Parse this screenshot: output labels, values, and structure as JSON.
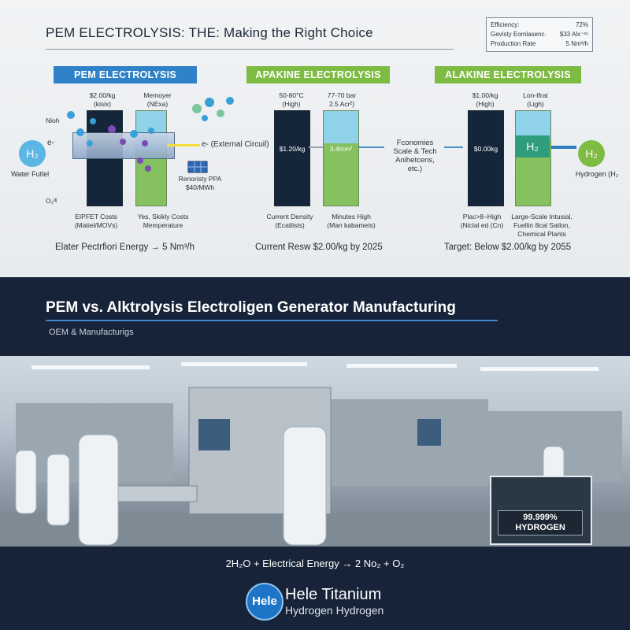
{
  "header": {
    "title": "PEM ELECTROLYSIS: THE: Making the Right Choice"
  },
  "stats_box": {
    "rows": [
      {
        "label": "Efficiency:",
        "value": "72%"
      },
      {
        "label": "Gevisty Eomlasenc.",
        "value": "$33 Alx⁻ᵉ¹"
      },
      {
        "label": "Production Rate",
        "value": "5 Nm³/h"
      }
    ]
  },
  "sections": [
    {
      "label": "PEM ELECTROLYSIS",
      "color": "#2f82c8"
    },
    {
      "label": "APAKINE ELECTROLYSIS",
      "color": "#7dbb42"
    },
    {
      "label": "ALAKINE ELECTROLYSIS",
      "color": "#7dbb42"
    }
  ],
  "pem": {
    "col1_top": "$2.00/kg\n(kisix)",
    "col2_top": "Memoyer\n(NExa)",
    "in_label": "Nioh",
    "e_label": "e-",
    "water_label": "Water Futlel",
    "o2_label": "O₂ᵈʲ",
    "circuit_label": "e- (External Circuil)",
    "renew_label": "Renoristy PPA\n$40/MWh",
    "col1_bottom": "EIPFET Costs\n(Matiel/MOVs)",
    "col2_bottom": "Yes, Skikly Costs\nMemperature",
    "footer": "Elater Pectrfiori Energy → 5 Nm³/h"
  },
  "apakine": {
    "col1_top": "50-80°C\n(High)",
    "col2_top": "77-70 bar\n2.5 Acr²)",
    "col1_mid": "$1.20/kg",
    "col2_mid": "3.4/cm²",
    "col1_bottom": "Current Density\n(Ecatlists)",
    "col2_bottom": "Minutes High\n(Man kabamets)",
    "footer": "Current Resw $2.00/kg by 2025",
    "economies": "Fconomies\nScale & Tech\nAnihetcens, etc.)"
  },
  "alakine": {
    "col1_top": "$1.00/kg\n(High)",
    "col2_top": "Lon-Ifrat\n(Ligh)",
    "col1_mid": "$0.00kg",
    "col1_bottom": "Plac>8–High\n(Niclal ed (Cn)",
    "col2_bottom": "Large-Scale Intusial,\nFuellin 8cal Satlon,\nChemical Plants",
    "hydrogen_label": "Hydrogen (H₂",
    "footer": "Target: Below $2.00/kg by 2055"
  },
  "h2_symbol": "H₂",
  "bottom": {
    "title": "PEM vs. Alktrolysis Electroligen Generator Manufacturing",
    "subtitle": "OEM & Manufacturigs",
    "purity": "99.999%\nHYDROGEN",
    "equation": "2H₂O + Electrical Energy → 2 No₂ + O₂"
  },
  "brand": {
    "mark": "Hele",
    "name": "Hele Titanium",
    "tagline": "Hydrogen Hydrogen"
  }
}
